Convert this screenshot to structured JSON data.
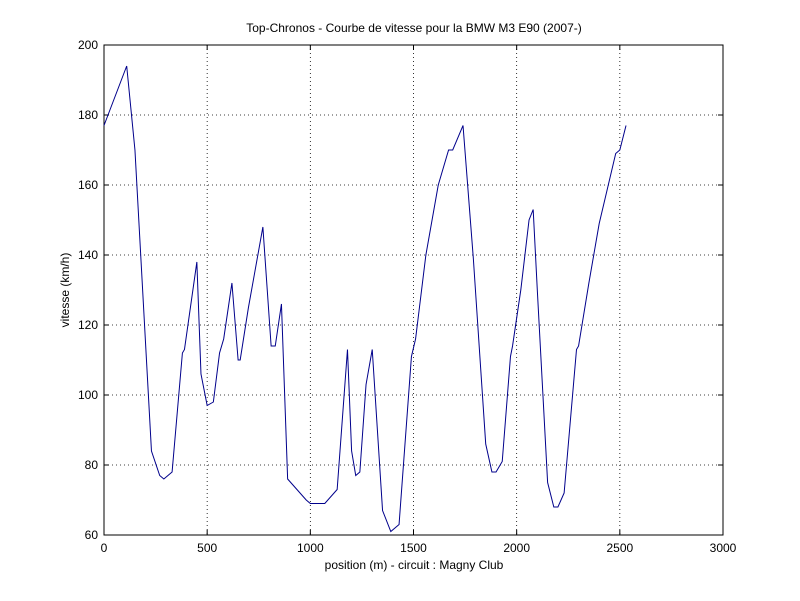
{
  "chart_data": {
    "type": "line",
    "title": "Top-Chronos - Courbe de vitesse pour la BMW M3 E90 (2007-)",
    "xlabel": "position (m) - circuit : Magny Club",
    "ylabel": "vitesse (km/h)",
    "xlim": [
      0,
      3000
    ],
    "xticks": [
      0,
      500,
      1000,
      1500,
      2000,
      2500,
      3000
    ],
    "ylim": [
      60,
      200
    ],
    "yticks": [
      60,
      80,
      100,
      120,
      140,
      160,
      180,
      200
    ],
    "grid": true,
    "series": [
      {
        "color": "#00008b",
        "x": [
          0,
          110,
          150,
          230,
          270,
          290,
          330,
          380,
          390,
          450,
          470,
          500,
          530,
          560,
          580,
          620,
          650,
          660,
          700,
          770,
          810,
          830,
          860,
          890,
          980,
          1000,
          1070,
          1130,
          1180,
          1200,
          1220,
          1240,
          1270,
          1300,
          1350,
          1390,
          1430,
          1490,
          1510,
          1560,
          1620,
          1670,
          1690,
          1740,
          1790,
          1850,
          1880,
          1900,
          1930,
          1970,
          1980,
          2020,
          2060,
          2080,
          2100,
          2150,
          2180,
          2200,
          2230,
          2290,
          2300,
          2350,
          2400,
          2480,
          2500,
          2530
        ],
        "values": [
          177,
          194,
          170,
          84,
          77,
          76,
          78,
          112,
          113,
          138,
          106,
          97,
          98,
          112,
          116,
          132,
          110,
          110,
          125,
          148,
          114,
          114,
          126,
          76,
          70,
          69,
          69,
          73,
          113,
          84,
          77,
          78,
          103,
          113,
          67,
          61,
          63,
          111,
          116,
          140,
          160,
          170,
          170,
          177,
          139,
          86,
          78,
          78,
          81,
          111,
          114,
          130,
          150,
          153,
          130,
          75,
          68,
          68,
          72,
          113,
          114,
          132,
          149,
          169,
          170,
          177
        ]
      }
    ]
  }
}
